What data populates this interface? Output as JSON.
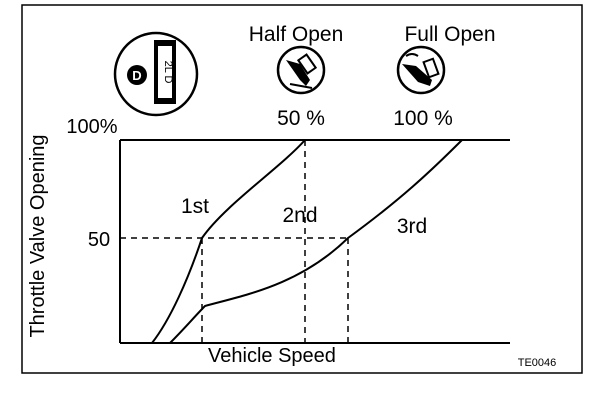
{
  "diagram": {
    "icons": {
      "selector": "selector-dial-icon",
      "half_open": "pedal-half-open-icon",
      "full_open": "pedal-full-open-icon"
    },
    "selector": {
      "position_letter": "D",
      "position_list": "2L D"
    },
    "labels": {
      "half_open": "Half Open",
      "full_open": "Full Open",
      "half_open_pct": "50 %",
      "full_open_pct": "100 %",
      "y_100": "100%",
      "y_50": "50",
      "y_axis": "Throttle Valve Opening",
      "x_axis": "Vehicle Speed",
      "gear_1": "1st",
      "gear_2": "2nd",
      "gear_3": "3rd",
      "figure_code": "TE0046"
    }
  }
}
